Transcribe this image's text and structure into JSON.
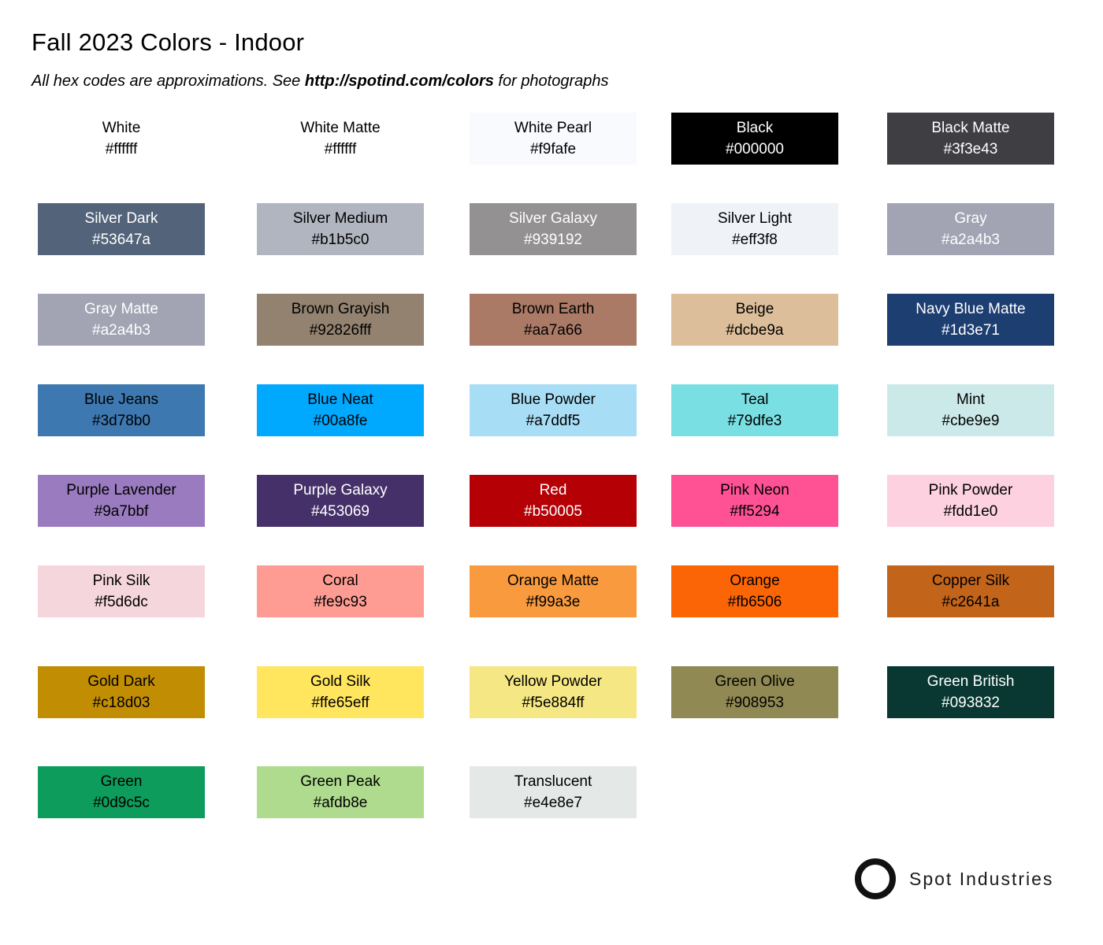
{
  "header": {
    "title": "Fall 2023 Colors - Indoor",
    "subtitle": {
      "prefix": "All hex codes are approximations. See ",
      "url": "http://spotind.com/colors",
      "suffix": " for photographs"
    }
  },
  "palette": {
    "swatches": [
      {
        "name": "White",
        "hex": "#ffffff",
        "bg": "#ffffff",
        "text": "#000000"
      },
      {
        "name": "White Matte",
        "hex": "#ffffff",
        "bg": "#ffffff",
        "text": "#000000"
      },
      {
        "name": "White Pearl",
        "hex": "#f9fafe",
        "bg": "#f9fafe",
        "text": "#000000"
      },
      {
        "name": "Black",
        "hex": "#000000",
        "bg": "#000000",
        "text": "#ffffff"
      },
      {
        "name": "Black Matte",
        "hex": "#3f3e43",
        "bg": "#3f3e43",
        "text": "#ffffff"
      },
      {
        "name": "Silver Dark",
        "hex": "#53647a",
        "bg": "#53647a",
        "text": "#ffffff"
      },
      {
        "name": "Silver Medium",
        "hex": "#b1b5c0",
        "bg": "#b1b5c0",
        "text": "#000000"
      },
      {
        "name": "Silver Galaxy",
        "hex": "#939192",
        "bg": "#939192",
        "text": "#ffffff"
      },
      {
        "name": "Silver Light",
        "hex": "#eff3f8",
        "bg": "#eff3f8",
        "text": "#000000"
      },
      {
        "name": "Gray",
        "hex": "#a2a4b3",
        "bg": "#a2a4b3",
        "text": "#ffffff"
      },
      {
        "name": "Gray Matte",
        "hex": "#a2a4b3",
        "bg": "#a2a4b3",
        "text": "#ffffff"
      },
      {
        "name": "Brown Grayish",
        "hex": "#92826fff",
        "bg": "#92826f",
        "text": "#000000"
      },
      {
        "name": "Brown Earth",
        "hex": "#aa7a66",
        "bg": "#aa7a66",
        "text": "#000000"
      },
      {
        "name": "Beige",
        "hex": "#dcbe9a",
        "bg": "#dcbe9a",
        "text": "#000000"
      },
      {
        "name": "Navy Blue Matte",
        "hex": "#1d3e71",
        "bg": "#1d3e71",
        "text": "#ffffff"
      },
      {
        "name": "Blue Jeans",
        "hex": "#3d78b0",
        "bg": "#3d78b0",
        "text": "#000000"
      },
      {
        "name": "Blue Neat",
        "hex": "#00a8fe",
        "bg": "#00a8fe",
        "text": "#000000"
      },
      {
        "name": "Blue Powder",
        "hex": "#a7ddf5",
        "bg": "#a7ddf5",
        "text": "#000000"
      },
      {
        "name": "Teal",
        "hex": "#79dfe3",
        "bg": "#79dfe3",
        "text": "#000000"
      },
      {
        "name": "Mint",
        "hex": "#cbe9e9",
        "bg": "#cbe9e9",
        "text": "#000000"
      },
      {
        "name": "Purple Lavender",
        "hex": "#9a7bbf",
        "bg": "#9a7bbf",
        "text": "#000000"
      },
      {
        "name": "Purple Galaxy",
        "hex": "#453069",
        "bg": "#453069",
        "text": "#ffffff"
      },
      {
        "name": "Red",
        "hex": "#b50005",
        "bg": "#b50005",
        "text": "#ffffff"
      },
      {
        "name": "Pink Neon",
        "hex": "#ff5294",
        "bg": "#ff5294",
        "text": "#000000"
      },
      {
        "name": "Pink Powder",
        "hex": "#fdd1e0",
        "bg": "#fdd1e0",
        "text": "#000000"
      },
      {
        "name": "Pink Silk",
        "hex": "#f5d6dc",
        "bg": "#f5d6dc",
        "text": "#000000"
      },
      {
        "name": "Coral",
        "hex": "#fe9c93",
        "bg": "#fe9c93",
        "text": "#000000"
      },
      {
        "name": "Orange Matte",
        "hex": "#f99a3e",
        "bg": "#f99a3e",
        "text": "#000000"
      },
      {
        "name": "Orange",
        "hex": "#fb6506",
        "bg": "#fb6506",
        "text": "#000000"
      },
      {
        "name": "Copper Silk",
        "hex": "#c2641a",
        "bg": "#c2641a",
        "text": "#000000"
      },
      {
        "name": "Gold Dark",
        "hex": "#c18d03",
        "bg": "#c18d03",
        "text": "#000000"
      },
      {
        "name": "Gold Silk",
        "hex": "#ffe65eff",
        "bg": "#ffe65e",
        "text": "#000000"
      },
      {
        "name": "Yellow Powder",
        "hex": "#f5e884ff",
        "bg": "#f5e884",
        "text": "#000000"
      },
      {
        "name": "Green Olive",
        "hex": "#908953",
        "bg": "#908953",
        "text": "#000000"
      },
      {
        "name": "Green British",
        "hex": "#093832",
        "bg": "#093832",
        "text": "#ffffff"
      },
      {
        "name": "Green",
        "hex": "#0d9c5c",
        "bg": "#0d9c5c",
        "text": "#000000"
      },
      {
        "name": "Green Peak",
        "hex": "#afdb8e",
        "bg": "#afdb8e",
        "text": "#000000"
      },
      {
        "name": "Translucent",
        "hex": "#e4e8e7",
        "bg": "#e4e8e7",
        "text": "#000000"
      }
    ]
  },
  "footer": {
    "brand": "Spot Industries",
    "logo_icon": "ring-circle-icon",
    "logo_color": "#111111"
  }
}
